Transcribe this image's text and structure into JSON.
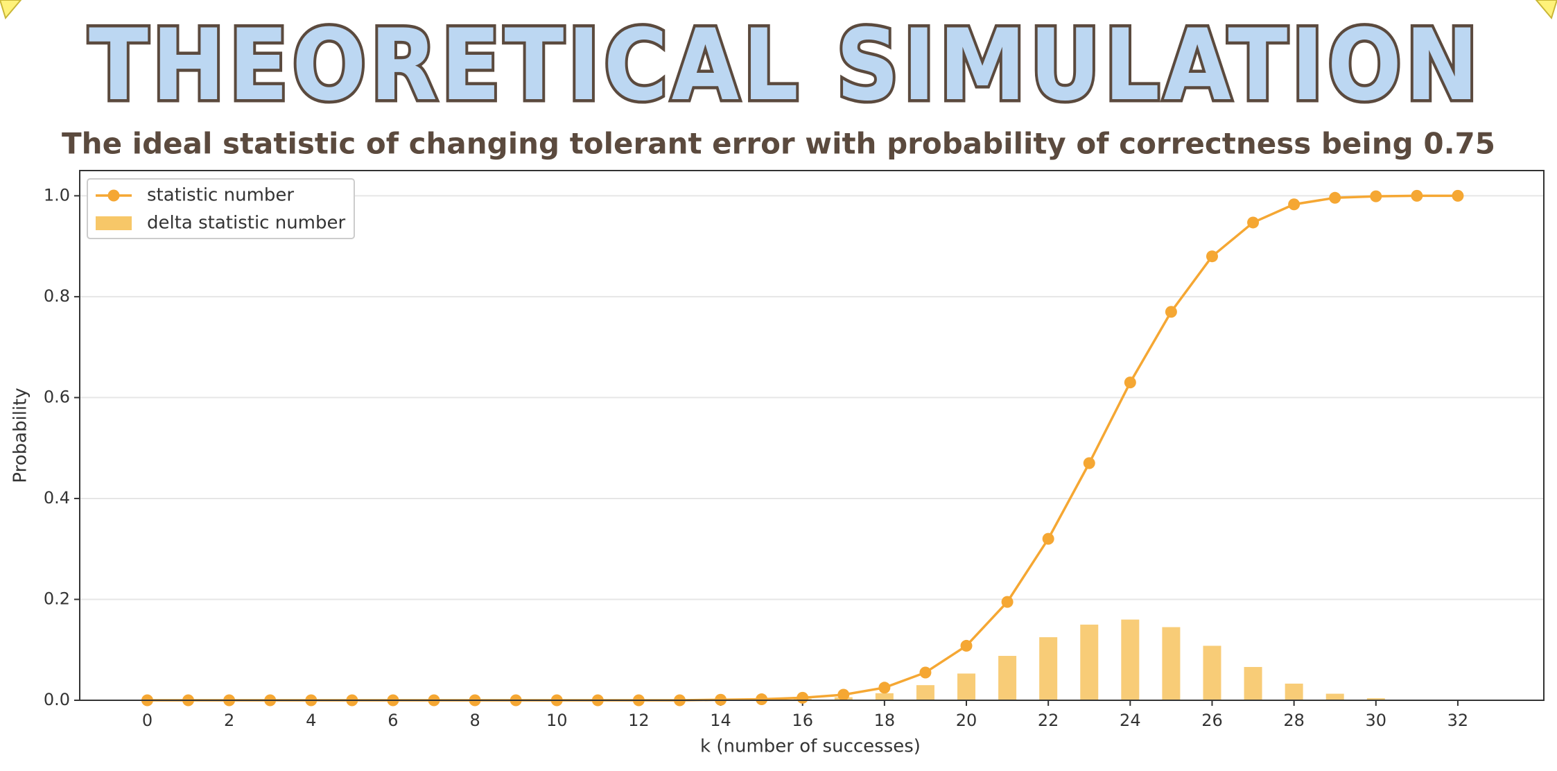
{
  "chart_data": {
    "type": "line",
    "title": "THEORETICAL SIMULATION",
    "subtitle": "The ideal statistic of changing tolerant error with probability of correctness being 0.75",
    "x_label": "k (number of successes)",
    "y_label": "Probability",
    "x": [
      0,
      1,
      2,
      3,
      4,
      5,
      6,
      7,
      8,
      9,
      10,
      11,
      12,
      13,
      14,
      15,
      16,
      17,
      18,
      19,
      20,
      21,
      22,
      23,
      24,
      25,
      26,
      27,
      28,
      29,
      30,
      31,
      32
    ],
    "series": [
      {
        "name": "statistic number",
        "type": "line",
        "color": "#f5a733",
        "values": [
          0,
          0,
          0,
          0,
          0,
          0,
          0,
          0,
          0,
          0,
          0,
          0,
          0,
          0,
          0.001,
          0.002,
          0.005,
          0.011,
          0.025,
          0.055,
          0.108,
          0.195,
          0.32,
          0.47,
          0.63,
          0.77,
          0.88,
          0.947,
          0.983,
          0.996,
          0.999,
          1.0,
          1.0
        ]
      },
      {
        "name": "delta statistic number",
        "type": "bar",
        "color": "#f7c768",
        "values": [
          0,
          0,
          0,
          0,
          0,
          0,
          0,
          0,
          0,
          0,
          0,
          0,
          0,
          0,
          0,
          0.001,
          0.003,
          0.006,
          0.014,
          0.03,
          0.053,
          0.088,
          0.125,
          0.15,
          0.16,
          0.145,
          0.108,
          0.066,
          0.033,
          0.013,
          0.004,
          0.001,
          0
        ]
      }
    ],
    "xlim": [
      -1.65,
      34.1
    ],
    "ylim": [
      0,
      1.05
    ],
    "xticks": [
      0,
      2,
      4,
      6,
      8,
      10,
      12,
      14,
      16,
      18,
      20,
      22,
      24,
      26,
      28,
      30,
      32
    ],
    "yticks": [
      {
        "value": 0,
        "label": "0.0"
      },
      0.2,
      0.4,
      0.6,
      0.8,
      {
        "value": 1,
        "label": "1.0"
      }
    ],
    "grid": true,
    "legend": "upper-left"
  }
}
